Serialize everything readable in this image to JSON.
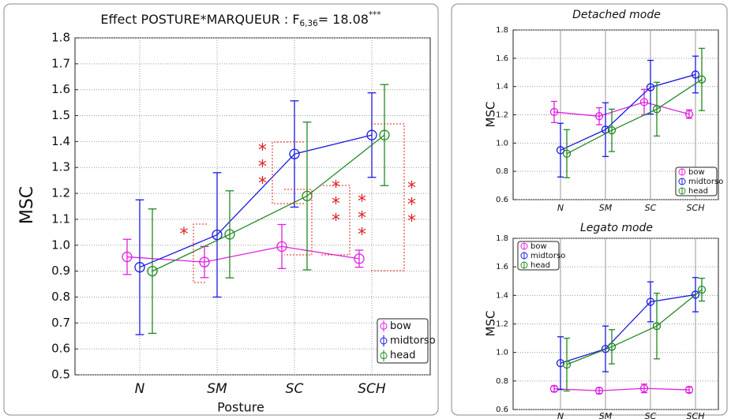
{
  "chart_data": [
    {
      "type": "errorbar-line",
      "title": "Effect POSTURE*MARQUEUR : F",
      "title_subscript": "6,36",
      "title_suffix": "= 18.08",
      "title_superscript": "***",
      "x_label": "Posture",
      "y_label": "MSC",
      "categories": [
        "N",
        "SM",
        "SC",
        "SCH"
      ],
      "ylim": [
        0.5,
        1.8
      ],
      "yticks": [
        0.5,
        0.6,
        0.7,
        0.8,
        0.9,
        {
          "value": 1,
          "label": "1.0"
        },
        1.1,
        1.2,
        1.3,
        1.4,
        1.5,
        1.6,
        1.7,
        1.8
      ],
      "grid": true,
      "legend": "bottom-right",
      "series": [
        {
          "name": "bow",
          "color": "#e020e0",
          "values": [
            0.955,
            0.935,
            0.995,
            0.948
          ],
          "errors": [
            0.068,
            0.06,
            0.085,
            0.033
          ]
        },
        {
          "name": "midtorso",
          "color": "#1a1ae0",
          "values": [
            0.915,
            1.04,
            1.352,
            1.425
          ],
          "errors": [
            0.26,
            0.24,
            0.205,
            0.163
          ]
        },
        {
          "name": "head",
          "color": "#208a20",
          "values": [
            0.9,
            1.042,
            1.19,
            1.425
          ],
          "errors": [
            0.24,
            0.168,
            0.285,
            0.195
          ]
        }
      ],
      "annotations": [
        {
          "text": "*",
          "color": "#e02020"
        },
        {
          "text": "***",
          "color": "#e02020"
        },
        {
          "text": "***",
          "color": "#e02020"
        },
        {
          "text": "***",
          "color": "#e02020"
        },
        {
          "text": "***",
          "color": "#e02020"
        }
      ]
    },
    {
      "type": "errorbar-line",
      "title": "Detached mode",
      "y_label": "MSC",
      "categories": [
        "N",
        "SM",
        "SC",
        "SCH"
      ],
      "ylim": [
        0.6,
        1.8
      ],
      "yticks": [
        0.6,
        0.8,
        {
          "value": 1,
          "label": "1.0"
        },
        1.2,
        1.4,
        1.6,
        1.8
      ],
      "grid": true,
      "legend": "bottom-right",
      "series": [
        {
          "name": "bow",
          "color": "#e020e0",
          "values": [
            1.22,
            1.19,
            1.29,
            1.205
          ],
          "errors": [
            0.075,
            0.06,
            0.09,
            0.03
          ]
        },
        {
          "name": "midtorso",
          "color": "#1a1ae0",
          "values": [
            0.95,
            1.095,
            1.395,
            1.485
          ],
          "errors": [
            0.19,
            0.19,
            0.19,
            0.13
          ]
        },
        {
          "name": "head",
          "color": "#208a20",
          "values": [
            0.925,
            1.09,
            1.24,
            1.45
          ],
          "errors": [
            0.17,
            0.15,
            0.19,
            0.22
          ]
        }
      ]
    },
    {
      "type": "errorbar-line",
      "title": "Legato mode",
      "y_label": "MSC",
      "categories": [
        "N",
        "SM",
        "SC",
        "SCH"
      ],
      "ylim": [
        0.6,
        1.8
      ],
      "yticks": [
        0.6,
        0.8,
        {
          "value": 1,
          "label": "1.0"
        },
        1.2,
        1.4,
        1.6,
        1.8
      ],
      "grid": true,
      "legend": "top-left",
      "series": [
        {
          "name": "bow",
          "color": "#e020e0",
          "values": [
            0.745,
            0.732,
            0.748,
            0.738
          ],
          "errors": [
            0.02,
            0.02,
            0.03,
            0.02
          ]
        },
        {
          "name": "midtorso",
          "color": "#1a1ae0",
          "values": [
            0.925,
            1.025,
            1.355,
            1.405
          ],
          "errors": [
            0.185,
            0.16,
            0.14,
            0.12
          ]
        },
        {
          "name": "head",
          "color": "#208a20",
          "values": [
            0.915,
            1.04,
            1.185,
            1.44
          ],
          "errors": [
            0.185,
            0.12,
            0.23,
            0.08
          ]
        }
      ]
    }
  ]
}
